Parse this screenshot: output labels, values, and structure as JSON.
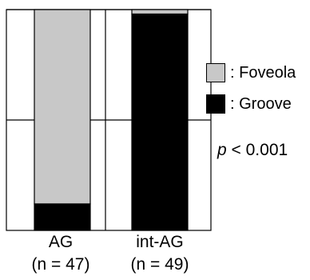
{
  "chart_data": {
    "type": "bar",
    "stacked": true,
    "percent_stacked": true,
    "categories": [
      "AG",
      "int-AG"
    ],
    "category_n": [
      "(n = 47)",
      "(n = 49)"
    ],
    "series": [
      {
        "name": "Foveola",
        "legend_label": ": Foveola",
        "color": "#c8c8c8",
        "values": [
          88,
          2
        ]
      },
      {
        "name": "Groove",
        "legend_label": ": Groove",
        "color": "#000000",
        "values": [
          12,
          98
        ]
      }
    ],
    "ylim": [
      0,
      100
    ],
    "grid": "horizontal-mid",
    "legend_position": "right",
    "annotation": {
      "symbol": "p",
      "text": " < 0.001"
    }
  }
}
